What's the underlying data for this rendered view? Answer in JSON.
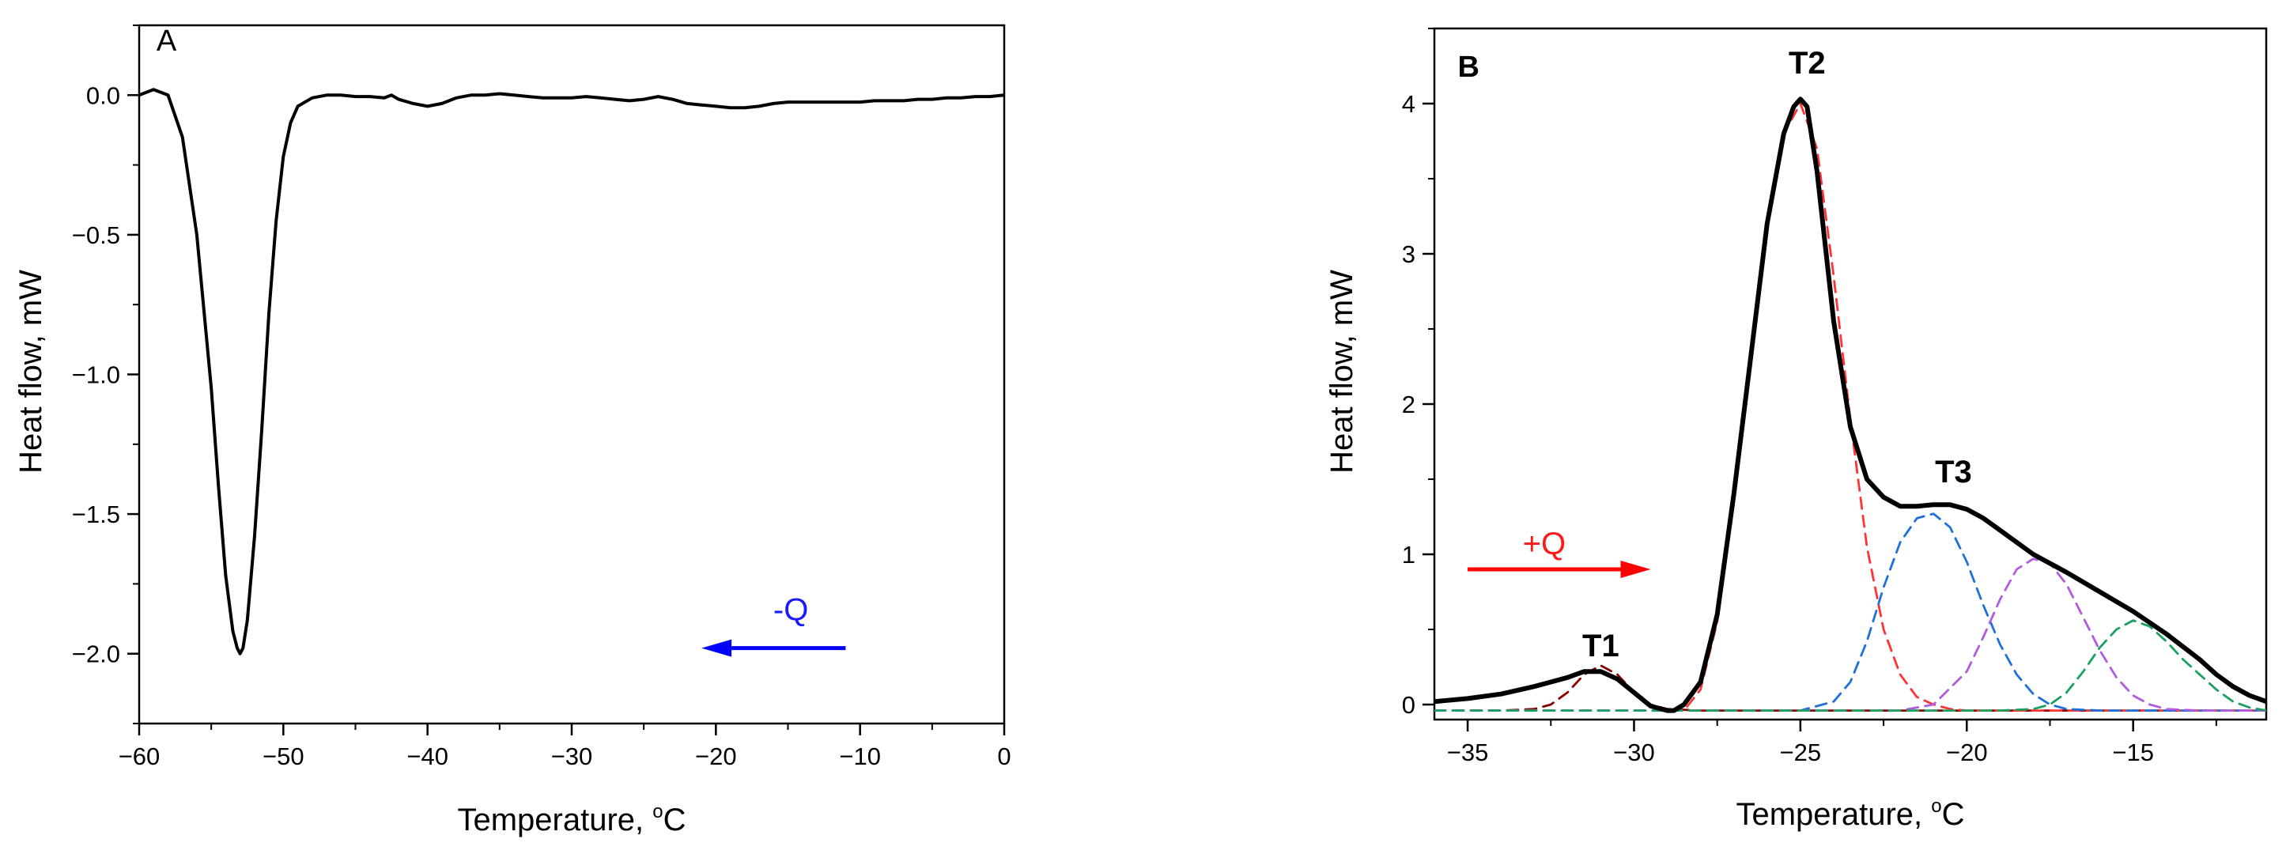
{
  "chart_data": [
    {
      "panel": "A",
      "type": "line",
      "xlabel": "Temperature, ",
      "xlabel_sup": "o",
      "xlabel_unit": "C",
      "ylabel": "Heat flow, mW",
      "xlim": [
        -60,
        0
      ],
      "ylim": [
        -2.25,
        0.25
      ],
      "x_ticks": [
        -60,
        -50,
        -40,
        -30,
        -20,
        -10,
        0
      ],
      "x_tick_labels": [
        "−60",
        "−50",
        "−40",
        "−30",
        "−20",
        "−10",
        "0"
      ],
      "y_ticks": [
        0.0,
        -0.5,
        -1.0,
        -1.5,
        -2.0
      ],
      "y_tick_labels": [
        "0.0",
        "−0.5",
        "−1.0",
        "−1.5",
        "−2.0"
      ],
      "series": [
        {
          "name": "cooling curve",
          "color": "#000000",
          "x": [
            -60,
            -59,
            -58,
            -57,
            -56,
            -55,
            -54.5,
            -54,
            -53.5,
            -53.2,
            -53,
            -52.8,
            -52.5,
            -52,
            -51.5,
            -51,
            -50.5,
            -50,
            -49.5,
            -49,
            -48,
            -47,
            -46,
            -45,
            -44,
            -43,
            -42.5,
            -42,
            -41,
            -40,
            -39,
            -38,
            -37,
            -36,
            -35,
            -34,
            -33,
            -32,
            -31,
            -30,
            -29,
            -28,
            -27,
            -26,
            -25,
            -24,
            -23,
            -22,
            -21,
            -20,
            -19,
            -18,
            -17,
            -16,
            -15,
            -14,
            -13,
            -12,
            -11,
            -10,
            -9,
            -8,
            -7,
            -6,
            -5,
            -4,
            -3,
            -2,
            -1,
            0
          ],
          "y": [
            0.0,
            0.02,
            0.0,
            -0.15,
            -0.5,
            -1.05,
            -1.4,
            -1.72,
            -1.92,
            -1.98,
            -2.0,
            -1.98,
            -1.88,
            -1.58,
            -1.2,
            -0.78,
            -0.45,
            -0.22,
            -0.1,
            -0.04,
            -0.01,
            0.0,
            0.0,
            -0.005,
            -0.005,
            -0.01,
            0.0,
            -0.015,
            -0.03,
            -0.04,
            -0.03,
            -0.01,
            0.0,
            0.0,
            0.005,
            0.0,
            -0.005,
            -0.01,
            -0.01,
            -0.01,
            -0.005,
            -0.01,
            -0.015,
            -0.02,
            -0.015,
            -0.005,
            -0.015,
            -0.03,
            -0.035,
            -0.04,
            -0.045,
            -0.045,
            -0.04,
            -0.03,
            -0.025,
            -0.025,
            -0.025,
            -0.025,
            -0.025,
            -0.025,
            -0.02,
            -0.02,
            -0.02,
            -0.015,
            -0.015,
            -0.01,
            -0.01,
            -0.005,
            -0.005,
            0.0
          ]
        }
      ],
      "annotations": [
        {
          "text": "A",
          "x": -58.8,
          "y": 0.16,
          "kind": "panel-letter"
        },
        {
          "text": "-Q",
          "x": -14.8,
          "y": -1.88,
          "kind": "q-label",
          "color": "#1a1aff"
        }
      ],
      "arrows": [
        {
          "name": "heat-direction-arrow",
          "from": [
            -11,
            -1.98
          ],
          "to": [
            -21,
            -1.98
          ],
          "color": "#0000ff"
        }
      ]
    },
    {
      "panel": "B",
      "type": "line",
      "xlabel": "Temperature, ",
      "xlabel_sup": "o",
      "xlabel_unit": "C",
      "ylabel": "Heat flow, mW",
      "xlim": [
        -36,
        -11
      ],
      "ylim": [
        -0.1,
        4.5
      ],
      "x_ticks": [
        -35,
        -30,
        -25,
        -20,
        -15
      ],
      "x_tick_labels": [
        "−35",
        "−30",
        "−25",
        "−20",
        "−15"
      ],
      "y_ticks": [
        0,
        1,
        2,
        3,
        4
      ],
      "y_tick_labels": [
        "0",
        "1",
        "2",
        "3",
        "4"
      ],
      "series": [
        {
          "name": "total heat flow",
          "color": "#000000",
          "style": "solid",
          "x": [
            -36,
            -35,
            -34,
            -33,
            -32.5,
            -32,
            -31.5,
            -31,
            -30.5,
            -30,
            -29.5,
            -29,
            -28.8,
            -28.5,
            -28,
            -27.5,
            -27,
            -26.5,
            -26,
            -25.5,
            -25.2,
            -25,
            -24.8,
            -24.5,
            -24,
            -23.5,
            -23,
            -22.5,
            -22,
            -21.5,
            -21,
            -20.5,
            -20,
            -19.5,
            -19,
            -18.5,
            -18,
            -17,
            -16,
            -15,
            -14,
            -13,
            -12.5,
            -12,
            -11.5,
            -11
          ],
          "y": [
            0.02,
            0.04,
            0.07,
            0.12,
            0.15,
            0.18,
            0.22,
            0.22,
            0.17,
            0.08,
            -0.01,
            -0.04,
            -0.04,
            0.0,
            0.15,
            0.6,
            1.4,
            2.3,
            3.2,
            3.8,
            3.98,
            4.03,
            3.98,
            3.55,
            2.55,
            1.85,
            1.5,
            1.38,
            1.32,
            1.32,
            1.33,
            1.33,
            1.3,
            1.24,
            1.16,
            1.08,
            1.0,
            0.88,
            0.75,
            0.62,
            0.47,
            0.3,
            0.2,
            0.12,
            0.06,
            0.02
          ]
        },
        {
          "name": "component T1",
          "color": "#8b0000",
          "style": "dashed",
          "x": [
            -36,
            -34,
            -33,
            -32.5,
            -32,
            -31.5,
            -31,
            -30.5,
            -30,
            -29.5,
            -29,
            -28,
            -11
          ],
          "y": [
            -0.04,
            -0.04,
            -0.03,
            0.0,
            0.08,
            0.2,
            0.26,
            0.2,
            0.08,
            0.0,
            -0.03,
            -0.04,
            -0.04
          ]
        },
        {
          "name": "component T2",
          "color": "#ff3333",
          "style": "dashed",
          "x": [
            -36,
            -28.5,
            -28,
            -27.5,
            -27,
            -26.5,
            -26,
            -25.5,
            -25,
            -24.5,
            -24,
            -23.5,
            -23,
            -22.5,
            -22,
            -21.5,
            -21,
            -20.5,
            -20,
            -11
          ],
          "y": [
            -0.04,
            -0.04,
            0.1,
            0.55,
            1.35,
            2.3,
            3.2,
            3.8,
            4.0,
            3.7,
            2.85,
            1.9,
            1.05,
            0.5,
            0.2,
            0.05,
            0.0,
            -0.03,
            -0.04,
            -0.04
          ]
        },
        {
          "name": "component T3-1",
          "color": "#1e6fdc",
          "style": "dashed",
          "x": [
            -36,
            -25,
            -24,
            -23.5,
            -23,
            -22.5,
            -22,
            -21.5,
            -21,
            -20.5,
            -20,
            -19.5,
            -19,
            -18.5,
            -18,
            -17.5,
            -17,
            -16,
            -11
          ],
          "y": [
            -0.04,
            -0.04,
            0.02,
            0.15,
            0.42,
            0.78,
            1.08,
            1.24,
            1.27,
            1.18,
            0.95,
            0.66,
            0.4,
            0.2,
            0.07,
            0.0,
            -0.03,
            -0.04,
            -0.04
          ]
        },
        {
          "name": "component T3-2",
          "color": "#b05be0",
          "style": "dashed",
          "x": [
            -36,
            -22,
            -21,
            -20,
            -19.5,
            -19,
            -18.5,
            -18,
            -17.5,
            -17,
            -16.5,
            -16,
            -15.5,
            -15,
            -14.5,
            -14,
            -13,
            -11
          ],
          "y": [
            -0.04,
            -0.04,
            0.0,
            0.22,
            0.45,
            0.7,
            0.9,
            0.97,
            0.94,
            0.8,
            0.58,
            0.36,
            0.18,
            0.06,
            0.0,
            -0.03,
            -0.04,
            -0.04
          ]
        },
        {
          "name": "component T3-3",
          "color": "#1aa060",
          "style": "dashed",
          "x": [
            -36,
            -19,
            -18,
            -17.5,
            -17,
            -16.5,
            -16,
            -15.5,
            -15,
            -14.5,
            -14,
            -13.5,
            -13,
            -12.5,
            -12,
            -11.5,
            -11
          ],
          "y": [
            -0.04,
            -0.04,
            -0.03,
            0.0,
            0.08,
            0.22,
            0.38,
            0.5,
            0.56,
            0.52,
            0.42,
            0.3,
            0.2,
            0.1,
            0.02,
            -0.02,
            -0.04
          ]
        }
      ],
      "annotations": [
        {
          "text": "B",
          "x": -35.3,
          "y": 4.18,
          "kind": "panel-letter"
        },
        {
          "text": "T2",
          "x": -24.8,
          "y": 4.2,
          "kind": "peak"
        },
        {
          "text": "T3",
          "x": -20.4,
          "y": 1.48,
          "kind": "peak"
        },
        {
          "text": "T1",
          "x": -31.0,
          "y": 0.32,
          "kind": "peak"
        },
        {
          "text": "+Q",
          "x": -32.7,
          "y": 1.0,
          "kind": "q-label",
          "color": "#ff1a1a"
        }
      ],
      "arrows": [
        {
          "name": "heat-direction-arrow",
          "from": [
            -35,
            0.9
          ],
          "to": [
            -29.5,
            0.9
          ],
          "color": "#ff0000"
        }
      ]
    }
  ]
}
